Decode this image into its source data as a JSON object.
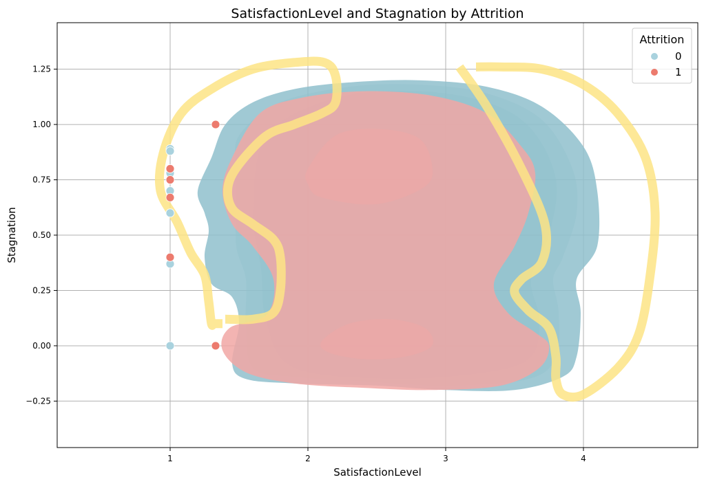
{
  "chart_data": {
    "type": "scatter",
    "title": "SatisfactionLevel and Stagnation by Attrition",
    "xlabel": "SatisfactionLevel",
    "ylabel": "Stagnation",
    "xlim": [
      0.18,
      4.83
    ],
    "ylim": [
      -0.46,
      1.46
    ],
    "xticks": [
      1,
      2,
      3,
      4
    ],
    "xtick_labels": [
      "1",
      "2",
      "3",
      "4"
    ],
    "yticks": [
      -0.25,
      0,
      0.25,
      0.5,
      0.75,
      1.0,
      1.25
    ],
    "ytick_labels": [
      "−0.25",
      "0.00",
      "0.25",
      "0.50",
      "0.75",
      "1.00",
      "1.25"
    ],
    "grid": true,
    "legend": {
      "title": "Attrition",
      "position": "top-right"
    },
    "series": [
      {
        "name": "0",
        "color": "#a9d2de",
        "points": [
          {
            "x": 1.0,
            "y": 0.89
          },
          {
            "x": 1.0,
            "y": 0.88
          },
          {
            "x": 1.0,
            "y": 0.78
          },
          {
            "x": 1.0,
            "y": 0.7
          },
          {
            "x": 1.0,
            "y": 0.6
          },
          {
            "x": 1.0,
            "y": 0.37
          },
          {
            "x": 1.0,
            "y": 0.0
          }
        ]
      },
      {
        "name": "1",
        "color": "#ec7b6e",
        "points": [
          {
            "x": 1.0,
            "y": 0.8
          },
          {
            "x": 1.0,
            "y": 0.75
          },
          {
            "x": 1.0,
            "y": 0.67
          },
          {
            "x": 1.0,
            "y": 0.4
          },
          {
            "x": 1.33,
            "y": 1.0
          },
          {
            "x": 1.33,
            "y": 0.0
          }
        ]
      }
    ],
    "density_contours": [
      {
        "name": "0",
        "color": "#8fbfcc",
        "levels": [
          [
            [
              1.3,
              0.85
            ],
            [
              1.4,
              1.0
            ],
            [
              1.6,
              1.1
            ],
            [
              1.9,
              1.16
            ],
            [
              2.3,
              1.19
            ],
            [
              2.8,
              1.2
            ],
            [
              3.3,
              1.17
            ],
            [
              3.7,
              1.08
            ],
            [
              4.0,
              0.9
            ],
            [
              4.1,
              0.7
            ],
            [
              4.1,
              0.45
            ],
            [
              3.95,
              0.3
            ],
            [
              3.98,
              0.15
            ],
            [
              3.95,
              -0.05
            ],
            [
              3.85,
              -0.14
            ],
            [
              3.5,
              -0.2
            ],
            [
              3.0,
              -0.2
            ],
            [
              2.5,
              -0.18
            ],
            [
              1.9,
              -0.17
            ],
            [
              1.55,
              -0.15
            ],
            [
              1.45,
              -0.08
            ],
            [
              1.5,
              0.1
            ],
            [
              1.45,
              0.22
            ],
            [
              1.3,
              0.28
            ],
            [
              1.25,
              0.4
            ],
            [
              1.28,
              0.52
            ],
            [
              1.25,
              0.6
            ],
            [
              1.2,
              0.7
            ]
          ],
          [
            [
              1.5,
              0.95
            ],
            [
              1.8,
              1.1
            ],
            [
              2.3,
              1.17
            ],
            [
              2.8,
              1.18
            ],
            [
              3.3,
              1.14
            ],
            [
              3.7,
              1.02
            ],
            [
              3.92,
              0.8
            ],
            [
              3.95,
              0.6
            ],
            [
              3.85,
              0.4
            ],
            [
              3.78,
              0.3
            ],
            [
              3.82,
              0.15
            ],
            [
              3.8,
              -0.05
            ],
            [
              3.6,
              -0.15
            ],
            [
              3.0,
              -0.18
            ],
            [
              2.4,
              -0.16
            ],
            [
              1.9,
              -0.14
            ],
            [
              1.6,
              -0.1
            ],
            [
              1.55,
              0.1
            ],
            [
              1.55,
              0.3
            ],
            [
              1.48,
              0.45
            ],
            [
              1.48,
              0.65
            ],
            [
              1.48,
              0.8
            ]
          ],
          [
            [
              1.7,
              0.95
            ],
            [
              2.2,
              1.12
            ],
            [
              2.8,
              1.15
            ],
            [
              3.3,
              1.1
            ],
            [
              3.62,
              0.98
            ],
            [
              3.8,
              0.75
            ],
            [
              3.75,
              0.5
            ],
            [
              3.62,
              0.3
            ],
            [
              3.68,
              0.12
            ],
            [
              3.62,
              -0.05
            ],
            [
              3.3,
              -0.12
            ],
            [
              2.6,
              -0.15
            ],
            [
              1.9,
              -0.1
            ],
            [
              1.7,
              0.1
            ],
            [
              1.66,
              0.35
            ],
            [
              1.6,
              0.6
            ]
          ]
        ]
      },
      {
        "name": "1",
        "color": "#f1a7a4",
        "levels": [
          [
            [
              1.45,
              0.85
            ],
            [
              1.65,
              1.05
            ],
            [
              1.95,
              1.12
            ],
            [
              2.4,
              1.15
            ],
            [
              2.9,
              1.13
            ],
            [
              3.3,
              1.05
            ],
            [
              3.55,
              0.9
            ],
            [
              3.65,
              0.78
            ],
            [
              3.6,
              0.6
            ],
            [
              3.5,
              0.45
            ],
            [
              3.35,
              0.28
            ],
            [
              3.45,
              0.15
            ],
            [
              3.65,
              0.06
            ],
            [
              3.75,
              0.0
            ],
            [
              3.68,
              -0.1
            ],
            [
              3.4,
              -0.18
            ],
            [
              2.9,
              -0.2
            ],
            [
              2.4,
              -0.19
            ],
            [
              1.9,
              -0.17
            ],
            [
              1.55,
              -0.12
            ],
            [
              1.38,
              -0.02
            ],
            [
              1.43,
              0.08
            ],
            [
              1.7,
              0.14
            ],
            [
              1.75,
              0.3
            ],
            [
              1.6,
              0.45
            ],
            [
              1.45,
              0.55
            ],
            [
              1.38,
              0.7
            ]
          ],
          [
            [
              2.0,
              0.8
            ],
            [
              2.2,
              0.95
            ],
            [
              2.5,
              0.98
            ],
            [
              2.8,
              0.94
            ],
            [
              2.9,
              0.82
            ],
            [
              2.85,
              0.72
            ],
            [
              2.5,
              0.64
            ],
            [
              2.1,
              0.67
            ],
            [
              2.0,
              0.73
            ]
          ],
          [
            [
              2.1,
              0.02
            ],
            [
              2.3,
              0.1
            ],
            [
              2.6,
              0.12
            ],
            [
              2.85,
              0.08
            ],
            [
              2.9,
              0.0
            ],
            [
              2.7,
              -0.05
            ],
            [
              2.4,
              -0.06
            ],
            [
              2.15,
              -0.03
            ]
          ]
        ]
      }
    ],
    "density_outline": {
      "color": "#fde485",
      "paths": [
        [
          [
            1.38,
            0.1
          ],
          [
            1.32,
            0.1
          ],
          [
            1.3,
            0.1
          ],
          [
            1.28,
            0.2
          ],
          [
            1.25,
            0.32
          ],
          [
            1.15,
            0.42
          ],
          [
            1.05,
            0.56
          ],
          [
            0.93,
            0.7
          ],
          [
            0.95,
            0.87
          ],
          [
            1.08,
            1.05
          ],
          [
            1.3,
            1.16
          ],
          [
            1.6,
            1.25
          ],
          [
            1.9,
            1.28
          ],
          [
            2.12,
            1.28
          ],
          [
            2.2,
            1.22
          ],
          [
            2.2,
            1.1
          ],
          [
            2.1,
            1.05
          ],
          [
            1.9,
            1.0
          ],
          [
            1.7,
            0.95
          ],
          [
            1.5,
            0.82
          ],
          [
            1.42,
            0.72
          ],
          [
            1.45,
            0.62
          ],
          [
            1.6,
            0.55
          ],
          [
            1.75,
            0.48
          ],
          [
            1.8,
            0.4
          ],
          [
            1.8,
            0.25
          ],
          [
            1.75,
            0.15
          ],
          [
            1.6,
            0.12
          ],
          [
            1.4,
            0.12
          ]
        ],
        [
          [
            3.1,
            1.26
          ],
          [
            3.3,
            1.08
          ],
          [
            3.55,
            0.8
          ],
          [
            3.72,
            0.55
          ],
          [
            3.7,
            0.38
          ],
          [
            3.55,
            0.3
          ],
          [
            3.5,
            0.24
          ],
          [
            3.6,
            0.16
          ],
          [
            3.75,
            0.08
          ],
          [
            3.8,
            -0.05
          ],
          [
            3.8,
            -0.15
          ],
          [
            3.85,
            -0.22
          ],
          [
            4.0,
            -0.22
          ],
          [
            4.25,
            -0.1
          ],
          [
            4.4,
            0.05
          ],
          [
            4.48,
            0.3
          ],
          [
            4.52,
            0.6
          ],
          [
            4.45,
            0.85
          ],
          [
            4.25,
            1.05
          ],
          [
            4.0,
            1.18
          ],
          [
            3.7,
            1.25
          ],
          [
            3.4,
            1.26
          ],
          [
            3.22,
            1.26
          ]
        ]
      ]
    }
  }
}
